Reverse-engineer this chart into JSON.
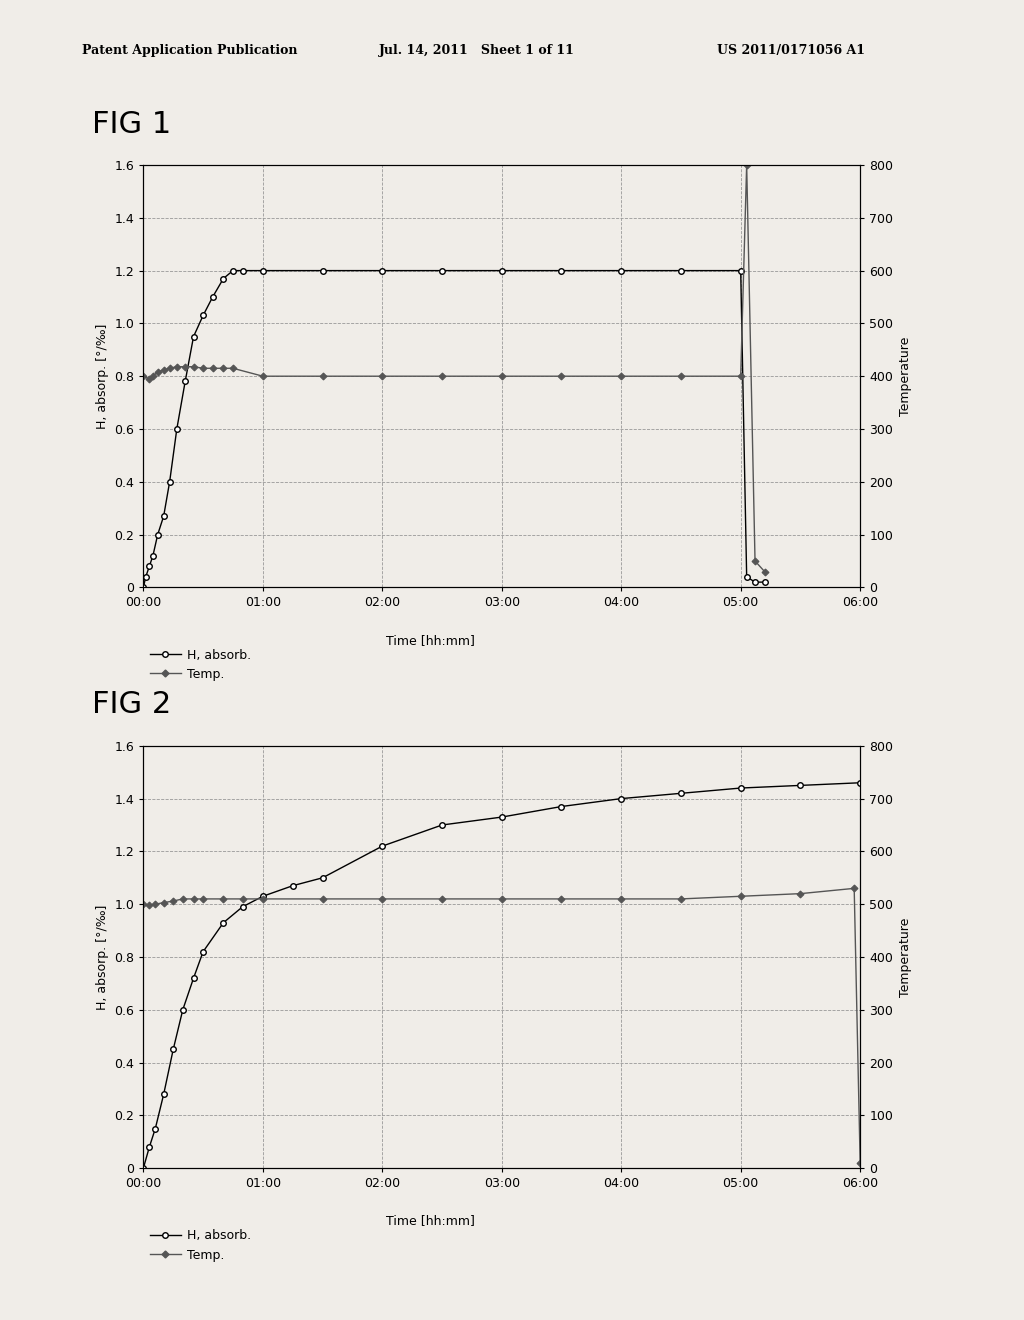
{
  "header_left": "Patent Application Publication",
  "header_mid": "Jul. 14, 2011   Sheet 1 of 11",
  "header_right": "US 2011/0171056 A1",
  "fig1": {
    "title": "FIG 1",
    "h_absorb_x": [
      0,
      0.02,
      0.05,
      0.08,
      0.12,
      0.17,
      0.22,
      0.28,
      0.35,
      0.42,
      0.5,
      0.58,
      0.67,
      0.75,
      0.83,
      1.0,
      1.5,
      2.0,
      2.5,
      3.0,
      3.5,
      4.0,
      4.5,
      5.0,
      5.05,
      5.12,
      5.2
    ],
    "h_absorb_y": [
      0,
      0.04,
      0.08,
      0.12,
      0.2,
      0.27,
      0.4,
      0.6,
      0.78,
      0.95,
      1.03,
      1.1,
      1.17,
      1.2,
      1.2,
      1.2,
      1.2,
      1.2,
      1.2,
      1.2,
      1.2,
      1.2,
      1.2,
      1.2,
      0.04,
      0.02,
      0.02
    ],
    "temp_x": [
      0,
      0.05,
      0.08,
      0.12,
      0.17,
      0.22,
      0.28,
      0.35,
      0.42,
      0.5,
      0.58,
      0.67,
      0.75,
      1.0,
      1.5,
      2.0,
      2.5,
      3.0,
      3.5,
      4.0,
      4.5,
      5.0,
      5.05,
      5.12,
      5.2
    ],
    "temp_y": [
      400,
      395,
      400,
      408,
      412,
      415,
      418,
      418,
      418,
      415,
      415,
      415,
      415,
      400,
      400,
      400,
      400,
      400,
      400,
      400,
      400,
      400,
      800,
      50,
      30
    ],
    "ylim_left": [
      0,
      1.6
    ],
    "ylim_right": [
      0,
      800
    ],
    "yticks_left": [
      0,
      0.2,
      0.4,
      0.6,
      0.8,
      1.0,
      1.2,
      1.4,
      1.6
    ],
    "yticks_right": [
      0,
      100,
      200,
      300,
      400,
      500,
      600,
      700,
      800
    ],
    "xlabel": "Time [hh:mm]",
    "ylabel_left": "H, absorp. [°/‰]",
    "ylabel_right": "Temperature",
    "xtick_labels": [
      "00:00",
      "01:00",
      "02:00",
      "03:00",
      "04:00",
      "05:00",
      "06:00"
    ],
    "xtick_values": [
      0,
      1,
      2,
      3,
      4,
      5,
      6
    ],
    "xlim": [
      0,
      6
    ],
    "legend1": "H, absorb.",
    "legend2": "Temp."
  },
  "fig2": {
    "title": "FIG 2",
    "h_absorb_x": [
      0,
      0.05,
      0.1,
      0.17,
      0.25,
      0.33,
      0.42,
      0.5,
      0.67,
      0.83,
      1.0,
      1.25,
      1.5,
      2.0,
      2.5,
      3.0,
      3.5,
      4.0,
      4.5,
      5.0,
      5.5,
      6.0
    ],
    "h_absorb_y": [
      0,
      0.08,
      0.15,
      0.28,
      0.45,
      0.6,
      0.72,
      0.82,
      0.93,
      0.99,
      1.03,
      1.07,
      1.1,
      1.22,
      1.3,
      1.33,
      1.37,
      1.4,
      1.42,
      1.44,
      1.45,
      1.46
    ],
    "temp_x": [
      0,
      0.05,
      0.1,
      0.17,
      0.25,
      0.33,
      0.42,
      0.5,
      0.67,
      0.83,
      1.0,
      1.5,
      2.0,
      2.5,
      3.0,
      3.5,
      4.0,
      4.5,
      5.0,
      5.5,
      5.95,
      6.0
    ],
    "temp_y": [
      500,
      498,
      500,
      503,
      506,
      510,
      510,
      510,
      510,
      510,
      510,
      510,
      510,
      510,
      510,
      510,
      510,
      510,
      515,
      520,
      530,
      10
    ],
    "ylim_left": [
      0,
      1.6
    ],
    "ylim_right": [
      0,
      800
    ],
    "yticks_left": [
      0,
      0.2,
      0.4,
      0.6,
      0.8,
      1.0,
      1.2,
      1.4,
      1.6
    ],
    "yticks_right": [
      0,
      100,
      200,
      300,
      400,
      500,
      600,
      700,
      800
    ],
    "xlabel": "Time [hh:mm]",
    "ylabel_left": "H, absorp. [°/‰]",
    "ylabel_right": "Temperature",
    "xtick_labels": [
      "00:00",
      "01:00",
      "02:00",
      "03:00",
      "04:00",
      "05:00",
      "06:00"
    ],
    "xtick_values": [
      0,
      1,
      2,
      3,
      4,
      5,
      6
    ],
    "xlim": [
      0,
      6
    ],
    "legend1": "H, absorb.",
    "legend2": "Temp."
  },
  "background_color": "#f0ede8",
  "line_color_h": "#000000",
  "line_color_temp": "#555555",
  "grid_color": "#999999",
  "header_fontsize": 9,
  "title_fontsize": 22,
  "axis_label_fontsize": 9,
  "tick_fontsize": 9,
  "legend_fontsize": 9
}
